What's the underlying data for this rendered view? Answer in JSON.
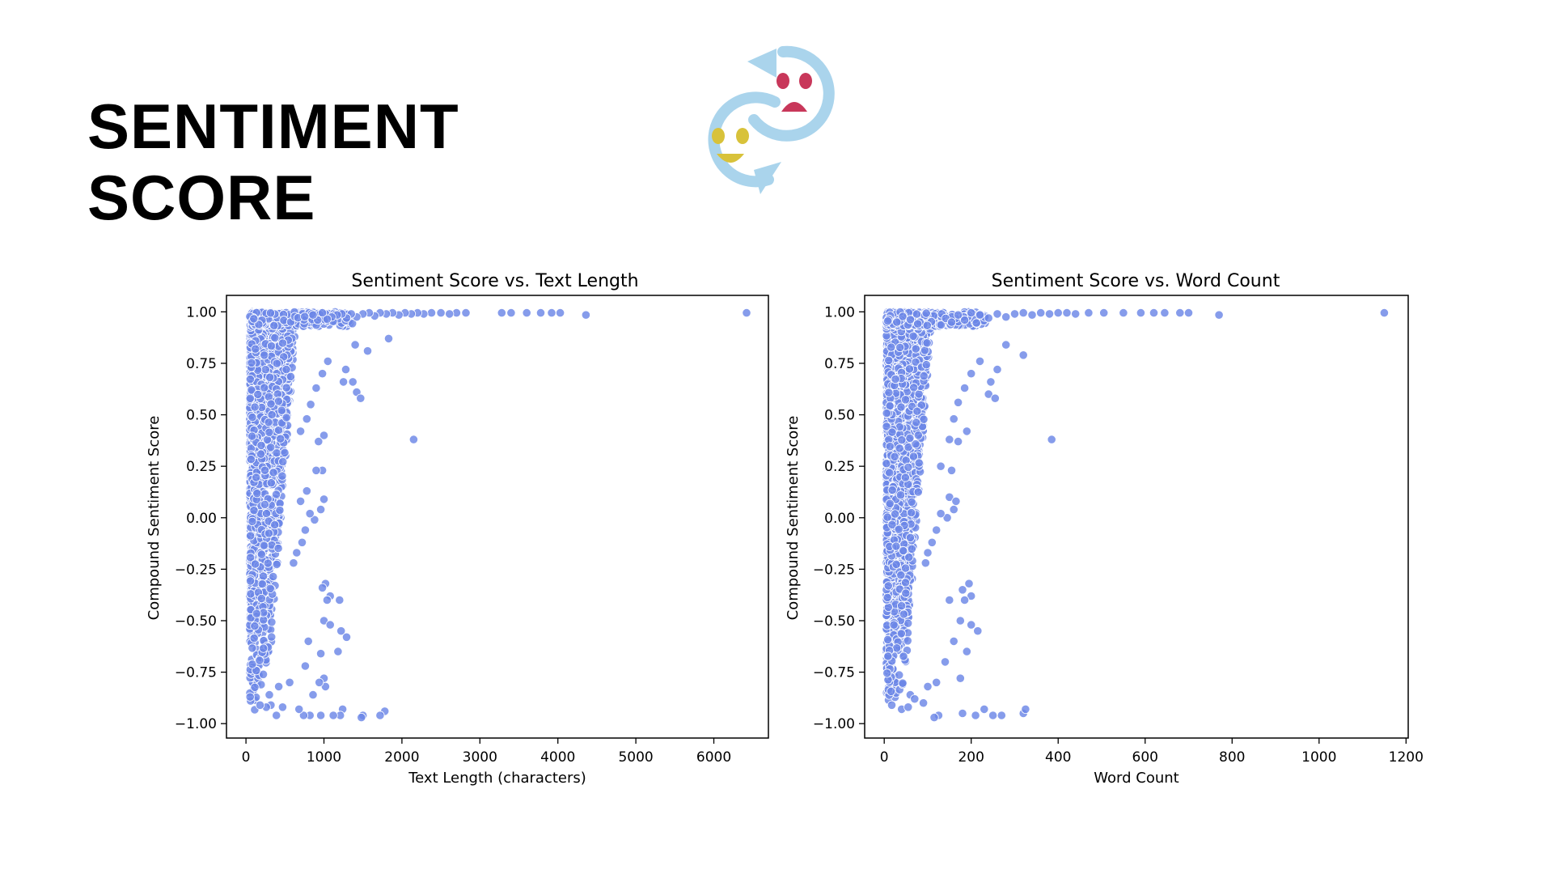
{
  "slide": {
    "title_line1": "SENTIMENT",
    "title_line2": "SCORE",
    "icon": "sentiment-swap-icon"
  },
  "colors": {
    "point_fill": "#6b86e6",
    "point_stroke": "#ffffff",
    "icon_ring": "#aad4ec",
    "icon_sad": "#c8375a",
    "icon_happy": "#d8c23a"
  },
  "chart_data": [
    {
      "type": "scatter",
      "title": "Sentiment Score vs. Text Length",
      "xlabel": "Text Length (characters)",
      "ylabel": "Compound Sentiment Score",
      "xlim": [
        -250,
        6700
      ],
      "ylim": [
        -1.07,
        1.08
      ],
      "xticks": [
        0,
        1000,
        2000,
        3000,
        4000,
        5000,
        6000
      ],
      "yticks": [
        1.0,
        0.75,
        0.5,
        0.25,
        0.0,
        -0.25,
        -0.5,
        -0.75,
        -1.0
      ],
      "grid": false,
      "points": [
        [
          6420,
          0.995
        ],
        [
          4360,
          0.985
        ],
        [
          4030,
          0.995
        ],
        [
          3920,
          0.995
        ],
        [
          3780,
          0.995
        ],
        [
          3600,
          0.995
        ],
        [
          3400,
          0.995
        ],
        [
          3280,
          0.995
        ],
        [
          2820,
          0.995
        ],
        [
          2700,
          0.995
        ],
        [
          2610,
          0.99
        ],
        [
          2500,
          0.995
        ],
        [
          2380,
          0.995
        ],
        [
          2280,
          0.99
        ],
        [
          2200,
          0.995
        ],
        [
          2120,
          0.99
        ],
        [
          2040,
          0.995
        ],
        [
          1960,
          0.985
        ],
        [
          1880,
          0.995
        ],
        [
          1800,
          0.99
        ],
        [
          1720,
          0.995
        ],
        [
          1650,
          0.98
        ],
        [
          1580,
          0.995
        ],
        [
          1500,
          0.99
        ],
        [
          1420,
          0.975
        ],
        [
          1350,
          0.99
        ],
        [
          1290,
          0.97
        ],
        [
          1230,
          0.99
        ],
        [
          1170,
          0.985
        ],
        [
          1100,
          0.975
        ],
        [
          1040,
          0.965
        ],
        [
          980,
          0.995
        ],
        [
          920,
          0.96
        ],
        [
          860,
          0.985
        ],
        [
          1830,
          0.87
        ],
        [
          1560,
          0.81
        ],
        [
          1400,
          0.84
        ],
        [
          1280,
          0.72
        ],
        [
          1250,
          0.66
        ],
        [
          1370,
          0.66
        ],
        [
          1420,
          0.61
        ],
        [
          1470,
          0.58
        ],
        [
          1050,
          0.76
        ],
        [
          980,
          0.7
        ],
        [
          900,
          0.63
        ],
        [
          830,
          0.55
        ],
        [
          780,
          0.48
        ],
        [
          700,
          0.42
        ],
        [
          2150,
          0.38
        ],
        [
          1000,
          0.4
        ],
        [
          930,
          0.37
        ],
        [
          980,
          0.23
        ],
        [
          900,
          0.23
        ],
        [
          780,
          0.13
        ],
        [
          700,
          0.08
        ],
        [
          1000,
          0.09
        ],
        [
          960,
          0.04
        ],
        [
          880,
          -0.01
        ],
        [
          820,
          0.02
        ],
        [
          760,
          -0.06
        ],
        [
          720,
          -0.12
        ],
        [
          650,
          -0.17
        ],
        [
          610,
          -0.22
        ],
        [
          1020,
          -0.32
        ],
        [
          980,
          -0.34
        ],
        [
          1080,
          -0.38
        ],
        [
          1040,
          -0.4
        ],
        [
          1200,
          -0.4
        ],
        [
          1000,
          -0.5
        ],
        [
          1080,
          -0.52
        ],
        [
          1220,
          -0.55
        ],
        [
          1290,
          -0.58
        ],
        [
          1180,
          -0.65
        ],
        [
          960,
          -0.66
        ],
        [
          800,
          -0.6
        ],
        [
          760,
          -0.72
        ],
        [
          1000,
          -0.78
        ],
        [
          1020,
          -0.82
        ],
        [
          940,
          -0.8
        ],
        [
          860,
          -0.86
        ],
        [
          1240,
          -0.93
        ],
        [
          1210,
          -0.96
        ],
        [
          1120,
          -0.96
        ],
        [
          960,
          -0.96
        ],
        [
          820,
          -0.96
        ],
        [
          740,
          -0.96
        ],
        [
          680,
          -0.93
        ],
        [
          1780,
          -0.94
        ],
        [
          1720,
          -0.96
        ],
        [
          1500,
          -0.96
        ],
        [
          1480,
          -0.97
        ],
        [
          560,
          -0.8
        ],
        [
          420,
          -0.82
        ],
        [
          320,
          -0.91
        ],
        [
          260,
          -0.92
        ],
        [
          180,
          -0.91
        ],
        [
          300,
          -0.86
        ],
        [
          470,
          -0.92
        ],
        [
          390,
          -0.96
        ]
      ],
      "dense_cluster": {
        "x_from": 50,
        "x_to": 650,
        "y_from": -0.95,
        "y_to": 1.0
      }
    },
    {
      "type": "scatter",
      "title": "Sentiment Score vs. Word Count",
      "xlabel": "Word Count",
      "ylabel": "Compound Sentiment Score",
      "xlim": [
        -45,
        1205
      ],
      "ylim": [
        -1.07,
        1.08
      ],
      "xticks": [
        0,
        200,
        400,
        600,
        800,
        1000,
        1200
      ],
      "yticks": [
        1.0,
        0.75,
        0.5,
        0.25,
        0.0,
        -0.25,
        -0.5,
        -0.75,
        -1.0
      ],
      "grid": false,
      "points": [
        [
          1150,
          0.995
        ],
        [
          770,
          0.985
        ],
        [
          700,
          0.995
        ],
        [
          680,
          0.995
        ],
        [
          645,
          0.995
        ],
        [
          620,
          0.995
        ],
        [
          590,
          0.995
        ],
        [
          550,
          0.995
        ],
        [
          505,
          0.995
        ],
        [
          470,
          0.995
        ],
        [
          440,
          0.99
        ],
        [
          420,
          0.995
        ],
        [
          400,
          0.995
        ],
        [
          380,
          0.99
        ],
        [
          360,
          0.995
        ],
        [
          340,
          0.985
        ],
        [
          320,
          0.995
        ],
        [
          300,
          0.99
        ],
        [
          280,
          0.975
        ],
        [
          260,
          0.99
        ],
        [
          240,
          0.97
        ],
        [
          220,
          0.985
        ],
        [
          200,
          0.995
        ],
        [
          185,
          0.96
        ],
        [
          170,
          0.985
        ],
        [
          155,
          0.95
        ],
        [
          320,
          0.79
        ],
        [
          280,
          0.84
        ],
        [
          260,
          0.72
        ],
        [
          245,
          0.66
        ],
        [
          240,
          0.6
        ],
        [
          255,
          0.58
        ],
        [
          220,
          0.76
        ],
        [
          200,
          0.7
        ],
        [
          185,
          0.63
        ],
        [
          170,
          0.56
        ],
        [
          160,
          0.48
        ],
        [
          385,
          0.38
        ],
        [
          190,
          0.42
        ],
        [
          170,
          0.37
        ],
        [
          150,
          0.38
        ],
        [
          155,
          0.23
        ],
        [
          130,
          0.25
        ],
        [
          150,
          0.1
        ],
        [
          165,
          0.08
        ],
        [
          160,
          0.04
        ],
        [
          145,
          0.0
        ],
        [
          130,
          0.02
        ],
        [
          120,
          -0.06
        ],
        [
          110,
          -0.12
        ],
        [
          100,
          -0.17
        ],
        [
          95,
          -0.22
        ],
        [
          195,
          -0.32
        ],
        [
          180,
          -0.35
        ],
        [
          200,
          -0.38
        ],
        [
          185,
          -0.4
        ],
        [
          150,
          -0.4
        ],
        [
          175,
          -0.5
        ],
        [
          200,
          -0.52
        ],
        [
          215,
          -0.55
        ],
        [
          190,
          -0.65
        ],
        [
          160,
          -0.6
        ],
        [
          140,
          -0.7
        ],
        [
          175,
          -0.78
        ],
        [
          120,
          -0.8
        ],
        [
          100,
          -0.82
        ],
        [
          230,
          -0.93
        ],
        [
          210,
          -0.96
        ],
        [
          250,
          -0.96
        ],
        [
          270,
          -0.96
        ],
        [
          320,
          -0.95
        ],
        [
          325,
          -0.93
        ],
        [
          180,
          -0.95
        ],
        [
          125,
          -0.96
        ],
        [
          115,
          -0.97
        ],
        [
          60,
          -0.86
        ],
        [
          40,
          -0.93
        ],
        [
          55,
          -0.92
        ],
        [
          70,
          -0.88
        ],
        [
          90,
          -0.9
        ]
      ],
      "dense_cluster": {
        "x_from": 5,
        "x_to": 110,
        "y_from": -0.95,
        "y_to": 1.0
      }
    }
  ]
}
